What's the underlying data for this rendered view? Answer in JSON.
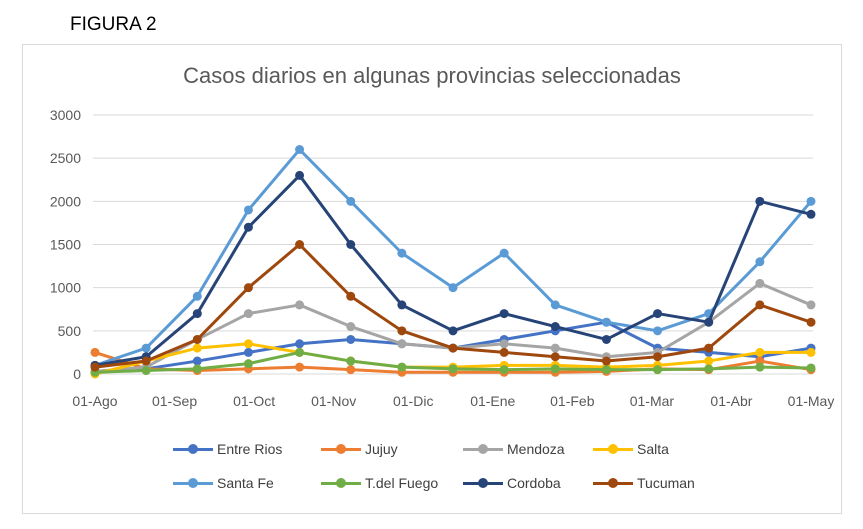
{
  "figure_label": "FIGURA 2",
  "chart_data": {
    "type": "line",
    "title": "Casos diarios en algunas provincias seleccionadas",
    "xlabel": "",
    "ylabel": "",
    "ylim": [
      0,
      3000
    ],
    "yticks": [
      "0",
      "500",
      "1000",
      "1500",
      "2000",
      "2500",
      "3000"
    ],
    "x_ticks": [
      "01-Ago",
      "01-Sep",
      "01-Oct",
      "01-Nov",
      "01-Dic",
      "01-Ene",
      "01-Feb",
      "01-Mar",
      "01-Abr",
      "01-May"
    ],
    "grid": "horizontal",
    "legend_position": "bottom",
    "markers": true,
    "series": [
      {
        "name": "Entre Rios",
        "color": "#4472C4",
        "values": [
          20,
          60,
          150,
          250,
          350,
          400,
          350,
          300,
          400,
          500,
          600,
          300,
          250,
          200,
          300
        ]
      },
      {
        "name": "Jujuy",
        "color": "#ED7D31",
        "values": [
          250,
          60,
          40,
          60,
          80,
          50,
          20,
          20,
          20,
          20,
          30,
          60,
          50,
          150,
          50
        ]
      },
      {
        "name": "Mendoza",
        "color": "#A5A5A5",
        "values": [
          30,
          80,
          400,
          700,
          800,
          550,
          350,
          300,
          350,
          300,
          200,
          250,
          600,
          1050,
          800
        ]
      },
      {
        "name": "Salta",
        "color": "#FFC000",
        "values": [
          0,
          150,
          300,
          350,
          250,
          150,
          80,
          80,
          100,
          100,
          80,
          100,
          150,
          250,
          250
        ]
      },
      {
        "name": "Santa Fe",
        "color": "#5B9BD5",
        "values": [
          100,
          300,
          900,
          1900,
          2600,
          2000,
          1400,
          1000,
          1400,
          800,
          600,
          500,
          700,
          1300,
          2000
        ]
      },
      {
        "name": "T.del Fuego",
        "color": "#70AD47",
        "values": [
          20,
          40,
          60,
          120,
          250,
          150,
          80,
          60,
          50,
          60,
          50,
          50,
          60,
          80,
          70
        ]
      },
      {
        "name": "Cordoba",
        "color": "#264478",
        "values": [
          100,
          200,
          700,
          1700,
          2300,
          1500,
          800,
          500,
          700,
          550,
          400,
          700,
          600,
          2000,
          1850
        ]
      },
      {
        "name": "Tucuman",
        "color": "#9E480E",
        "values": [
          80,
          150,
          400,
          1000,
          1500,
          900,
          500,
          300,
          250,
          200,
          150,
          200,
          300,
          800,
          600
        ]
      }
    ]
  }
}
